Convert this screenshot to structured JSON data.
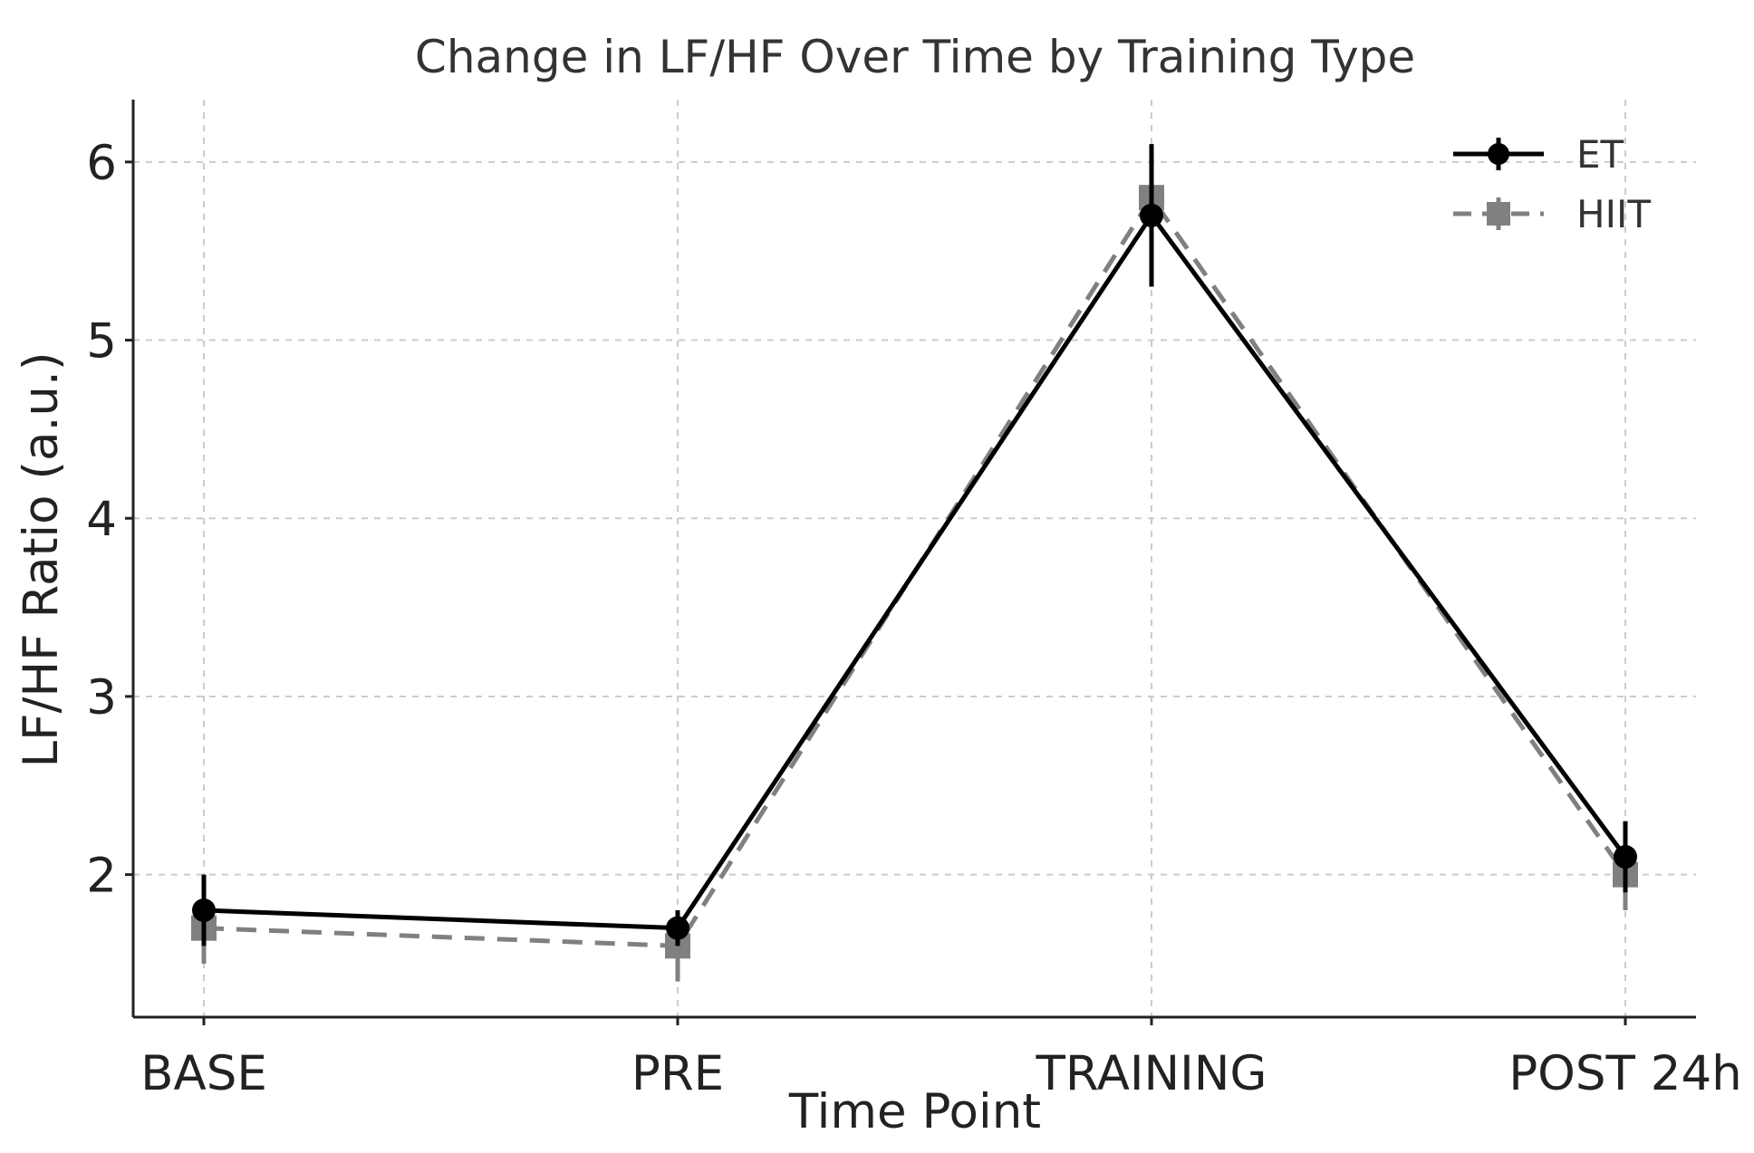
{
  "chart_data": {
    "type": "line",
    "title": "Change in LF/HF Over Time by Training Type",
    "xlabel": "Time Point",
    "ylabel": "LF/HF Ratio (a.u.)",
    "categories": [
      "BASE",
      "PRE",
      "TRAINING",
      "POST 24h"
    ],
    "ylim": [
      1.2,
      6.35
    ],
    "yticks": [
      2,
      3,
      4,
      5,
      6
    ],
    "grid": true,
    "legend_position": "top-right",
    "series": [
      {
        "name": "ET",
        "values": [
          1.8,
          1.7,
          5.7,
          2.1
        ],
        "errors": [
          0.2,
          0.1,
          0.4,
          0.2
        ],
        "color": "#000000",
        "line_style": "solid",
        "marker": "circle"
      },
      {
        "name": "HIIT",
        "values": [
          1.7,
          1.6,
          5.8,
          2.0
        ],
        "errors": [
          0.2,
          0.2,
          0.3,
          0.2
        ],
        "color": "#808080",
        "line_style": "dashed",
        "marker": "square"
      }
    ]
  }
}
